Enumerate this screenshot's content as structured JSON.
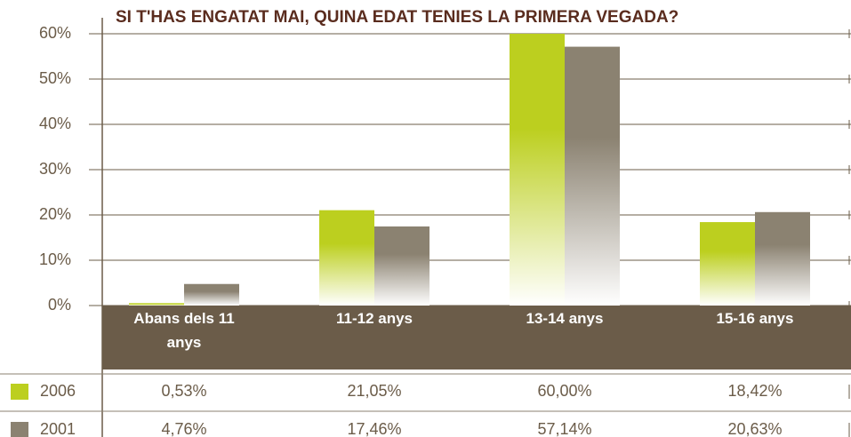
{
  "chart_data": {
    "type": "bar",
    "title": "SI T'HAS ENGATAT MAI, QUINA EDAT TENIES LA PRIMERA VEGADA?",
    "categories": [
      "Abans dels 11 anys",
      "11-12 anys",
      "13-14 anys",
      "15-16 anys"
    ],
    "series": [
      {
        "name": "2006",
        "color": "#bccf1f",
        "values": [
          0.53,
          21.05,
          60,
          18.42
        ],
        "value_labels": [
          "0,53%",
          "21,05%",
          "60,00%",
          "18,42%"
        ]
      },
      {
        "name": "2001",
        "color": "#8b8271",
        "values": [
          4.76,
          17.46,
          57.14,
          20.63
        ],
        "value_labels": [
          "4,76%",
          "17,46%",
          "57,14%",
          "20,63%"
        ]
      }
    ],
    "ylim": [
      0,
      60
    ],
    "yticks": [
      {
        "value": 0,
        "label": "0%"
      },
      {
        "value": 10,
        "label": "10%"
      },
      {
        "value": 20,
        "label": "20%"
      },
      {
        "value": 30,
        "label": "30%"
      },
      {
        "value": 40,
        "label": "40%"
      },
      {
        "value": 50,
        "label": "50%"
      },
      {
        "value": 60,
        "label": "60%"
      }
    ],
    "grid": true
  }
}
